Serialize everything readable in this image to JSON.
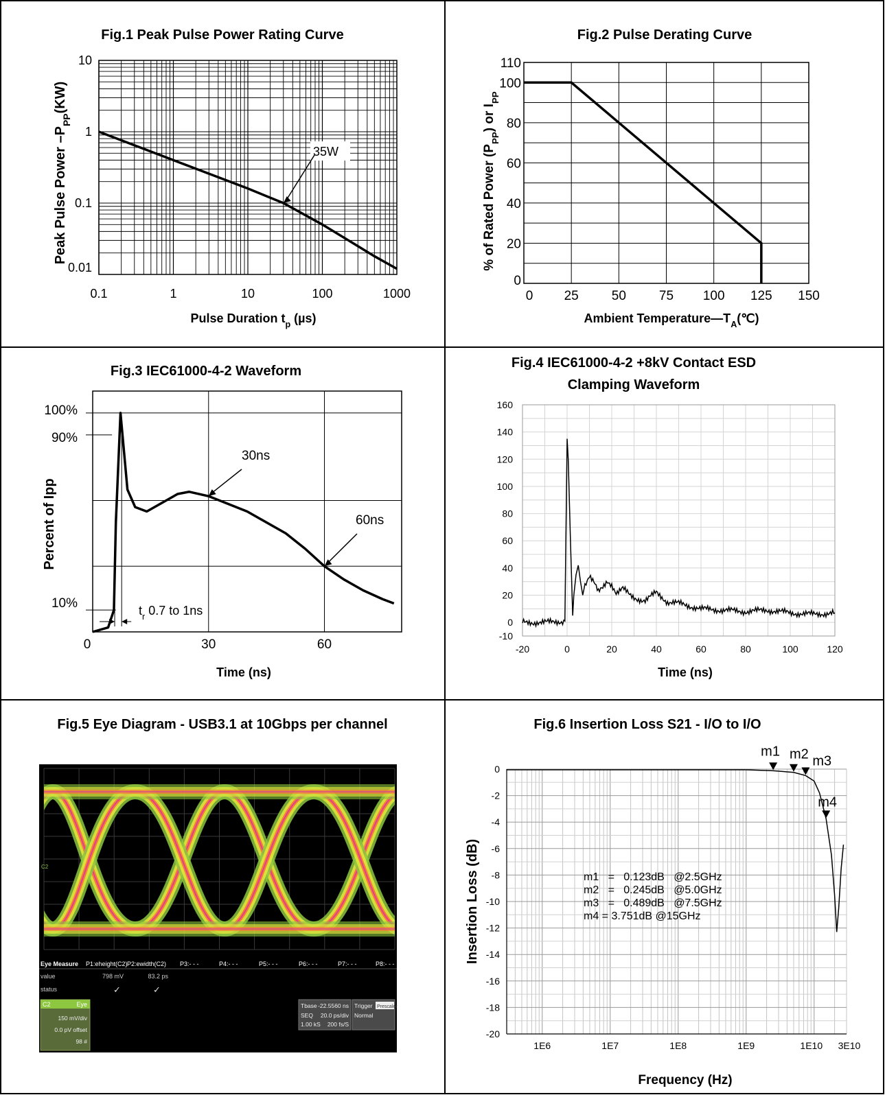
{
  "chart_data": [
    {
      "type": "line",
      "title": "Fig.1 Peak Pulse Power Rating Curve",
      "xlabel": "Pulse Duration t",
      "xlabel_sub": "p",
      "xlabel_unit": " (µs)",
      "ylabel": "Peak Pulse Power –P",
      "ylabel_sub": "PP",
      "ylabel_unit": "(KW)",
      "x_scale": "log",
      "y_scale": "log",
      "xlim": [
        0.1,
        1000
      ],
      "ylim": [
        0.01,
        10
      ],
      "x_ticks": [
        "0.1",
        "1",
        "10",
        "100",
        "1000"
      ],
      "y_ticks": [
        "0.01",
        "0.1",
        "1",
        "10"
      ],
      "grid": true,
      "series": [
        {
          "x": [
            0.1,
            1,
            10,
            30,
            100,
            250,
            500,
            1000
          ],
          "y": [
            1.0,
            0.4,
            0.16,
            0.1,
            0.05,
            0.028,
            0.018,
            0.012
          ]
        }
      ],
      "annotations": [
        {
          "text": "35W",
          "x": 30,
          "y": 0.1
        }
      ]
    },
    {
      "type": "line",
      "title": "Fig.2 Pulse Derating Curve",
      "xlabel": "Ambient Temperature—T",
      "xlabel_sub": "A",
      "xlabel_unit": "(℃)",
      "ylabel": "% of Rated Power (P",
      "ylabel_sub": "PP",
      "ylabel_mid": ") or I",
      "ylabel_sub2": "PP",
      "xlim": [
        0,
        150
      ],
      "ylim": [
        0,
        110
      ],
      "x_ticks": [
        "0",
        "25",
        "50",
        "75",
        "100",
        "125",
        "150"
      ],
      "y_ticks": [
        "0",
        "20",
        "40",
        "60",
        "80",
        "100",
        "110"
      ],
      "grid": true,
      "series": [
        {
          "x": [
            0,
            25,
            125,
            125
          ],
          "y": [
            100,
            100,
            20,
            0
          ]
        }
      ]
    },
    {
      "type": "line",
      "title": "Fig.3 IEC61000-4-2 Waveform",
      "xlabel": "Time  (ns)",
      "ylabel": "Percent of  Ipp",
      "xlim": [
        0,
        80
      ],
      "ylim": [
        0,
        110
      ],
      "x_ticks": [
        "0",
        "30",
        "60"
      ],
      "y_ticks": [
        "10%",
        "90%",
        "100%"
      ],
      "grid": true,
      "series": [
        {
          "x": [
            0,
            4,
            5.5,
            6,
            7.2,
            9,
            11,
            14,
            18,
            22,
            25,
            30,
            40,
            50,
            55,
            60,
            65,
            70,
            75,
            78
          ],
          "y": [
            0,
            2,
            10,
            50,
            100,
            65,
            57,
            55,
            59,
            63,
            64,
            62,
            55,
            45,
            38,
            30,
            24,
            19,
            15,
            13
          ]
        }
      ],
      "annotations": [
        {
          "text": "30ns",
          "x": 30,
          "y": 62
        },
        {
          "text": "60ns",
          "x": 60,
          "y": 30
        },
        {
          "text": "t",
          "sub": "r",
          "rest": " 0.7 to 1ns"
        }
      ]
    },
    {
      "type": "line",
      "title": "Fig.4 IEC61000-4-2 +8kV Contact ESD",
      "title2": "Clamping Waveform",
      "xlabel": "Time (ns)",
      "xlim": [
        -20,
        120
      ],
      "ylim": [
        -10,
        160
      ],
      "x_ticks": [
        "-20",
        "0",
        "20",
        "40",
        "60",
        "80",
        "100",
        "120"
      ],
      "y_ticks": [
        "-10",
        "0",
        "20",
        "40",
        "60",
        "80",
        "100",
        "120",
        "140",
        "160"
      ],
      "grid": true,
      "series": [
        {
          "x": [
            -20,
            -10,
            -1,
            0,
            0.5,
            1.5,
            2.5,
            3,
            4,
            5,
            6,
            7,
            8,
            10,
            12,
            14,
            16,
            18,
            20,
            22,
            25,
            28,
            30,
            35,
            40,
            45,
            50,
            60,
            70,
            80,
            90,
            100,
            110,
            120
          ],
          "y": [
            0,
            0,
            1,
            135,
            120,
            60,
            5,
            20,
            35,
            42,
            30,
            20,
            28,
            35,
            30,
            22,
            25,
            30,
            28,
            22,
            25,
            20,
            18,
            16,
            22,
            15,
            14,
            10,
            9,
            8,
            9,
            7,
            6,
            7
          ]
        }
      ]
    },
    {
      "type": "image",
      "title": "Fig.5 Eye Diagram - USB3.1 at 10Gbps per channel",
      "measure_header": [
        "Eye Measure",
        "P1:eheight(C2)",
        "P2:ewidth(C2)",
        "P3:- - -",
        "P4:- - -",
        "P5:- - -",
        "P6:- - -",
        "P7:- - -",
        "P8:- - -"
      ],
      "measure_value": [
        "value",
        "798 mV",
        "83.2 ps"
      ],
      "measure_status": [
        "status",
        "✓",
        "✓"
      ],
      "channel_box": [
        "C2",
        "Eye",
        "150 mV/div",
        "0.0 pV offset",
        "98 #"
      ],
      "timebase_box": [
        "Tbase",
        "-22.5560 ns",
        "SEQ",
        "20.0 ps/div",
        "1.00 kS",
        "200 fs/S"
      ],
      "trigger_box": [
        "Trigger",
        "Prescaler",
        "Normal"
      ],
      "channel_marker": "C2"
    },
    {
      "type": "line",
      "title": "Fig.6 Insertion Loss S21 - I/O to I/O",
      "xlabel": "Frequency (Hz)",
      "ylabel": "Insertion Loss (dB)",
      "x_scale": "log",
      "xlim": [
        300000,
        30000000000
      ],
      "ylim": [
        -20,
        0
      ],
      "x_ticks": [
        "1E6",
        "1E7",
        "1E8",
        "1E9",
        "1E10",
        "3E10"
      ],
      "y_ticks": [
        "0",
        "-2",
        "-4",
        "-6",
        "-8",
        "-10",
        "-12",
        "-14",
        "-16",
        "-18",
        "-20"
      ],
      "grid": true,
      "series": [
        {
          "x": [
            1000000000,
            2500000000,
            5000000000,
            7500000000,
            10000000000,
            12000000000,
            15000000000,
            18000000000,
            20000000000,
            21500000000,
            23000000000,
            25000000000,
            27000000000
          ],
          "y": [
            -0.05,
            -0.123,
            -0.245,
            -0.489,
            -0.9,
            -1.8,
            -3.751,
            -6.5,
            -9.5,
            -12.3,
            -10.5,
            -7.5,
            -5.7
          ]
        }
      ],
      "markers": [
        {
          "label": "m1",
          "x": 2500000000,
          "y": -0.123
        },
        {
          "label": "m2",
          "x": 5000000000,
          "y": -0.245
        },
        {
          "label": "m3",
          "x": 7500000000,
          "y": -0.489
        },
        {
          "label": "m4",
          "x": 15000000000,
          "y": -3.751
        }
      ],
      "annotations": [
        "m1   =   0.123dB   @2.5GHz",
        "m2   =   0.245dB   @5.0GHz",
        "m3   =   0.489dB   @7.5GHz",
        "m4 = 3.751dB @15GHz"
      ]
    }
  ]
}
